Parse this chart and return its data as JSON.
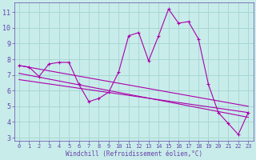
{
  "xlabel": "Windchill (Refroidissement éolien,°C)",
  "bg_color": "#c8ecea",
  "grid_color": "#a8d8d4",
  "line_color": "#aa00aa",
  "spine_color": "#6644aa",
  "xlim": [
    -0.5,
    23.5
  ],
  "ylim": [
    2.8,
    11.6
  ],
  "yticks": [
    3,
    4,
    5,
    6,
    7,
    8,
    9,
    10,
    11
  ],
  "xticks": [
    0,
    1,
    2,
    3,
    4,
    5,
    6,
    7,
    8,
    9,
    10,
    11,
    12,
    13,
    14,
    15,
    16,
    17,
    18,
    19,
    20,
    21,
    22,
    23
  ],
  "main_line": [
    [
      0,
      7.6
    ],
    [
      1,
      7.5
    ],
    [
      2,
      6.9
    ],
    [
      3,
      7.7
    ],
    [
      4,
      7.8
    ],
    [
      5,
      7.8
    ],
    [
      6,
      6.4
    ],
    [
      7,
      5.3
    ],
    [
      8,
      5.5
    ],
    [
      9,
      5.9
    ],
    [
      10,
      7.2
    ],
    [
      11,
      9.5
    ],
    [
      12,
      9.7
    ],
    [
      13,
      7.9
    ],
    [
      14,
      9.5
    ],
    [
      15,
      11.2
    ],
    [
      16,
      10.3
    ],
    [
      17,
      10.4
    ],
    [
      18,
      9.3
    ],
    [
      19,
      6.4
    ],
    [
      20,
      4.6
    ],
    [
      21,
      3.9
    ],
    [
      22,
      3.2
    ],
    [
      23,
      4.6
    ]
  ],
  "upper_line": [
    [
      0,
      7.6
    ],
    [
      23,
      5.0
    ]
  ],
  "lower_line": [
    [
      0,
      7.1
    ],
    [
      23,
      4.3
    ]
  ],
  "mid_line": [
    [
      0,
      6.7
    ],
    [
      23,
      4.6
    ]
  ]
}
